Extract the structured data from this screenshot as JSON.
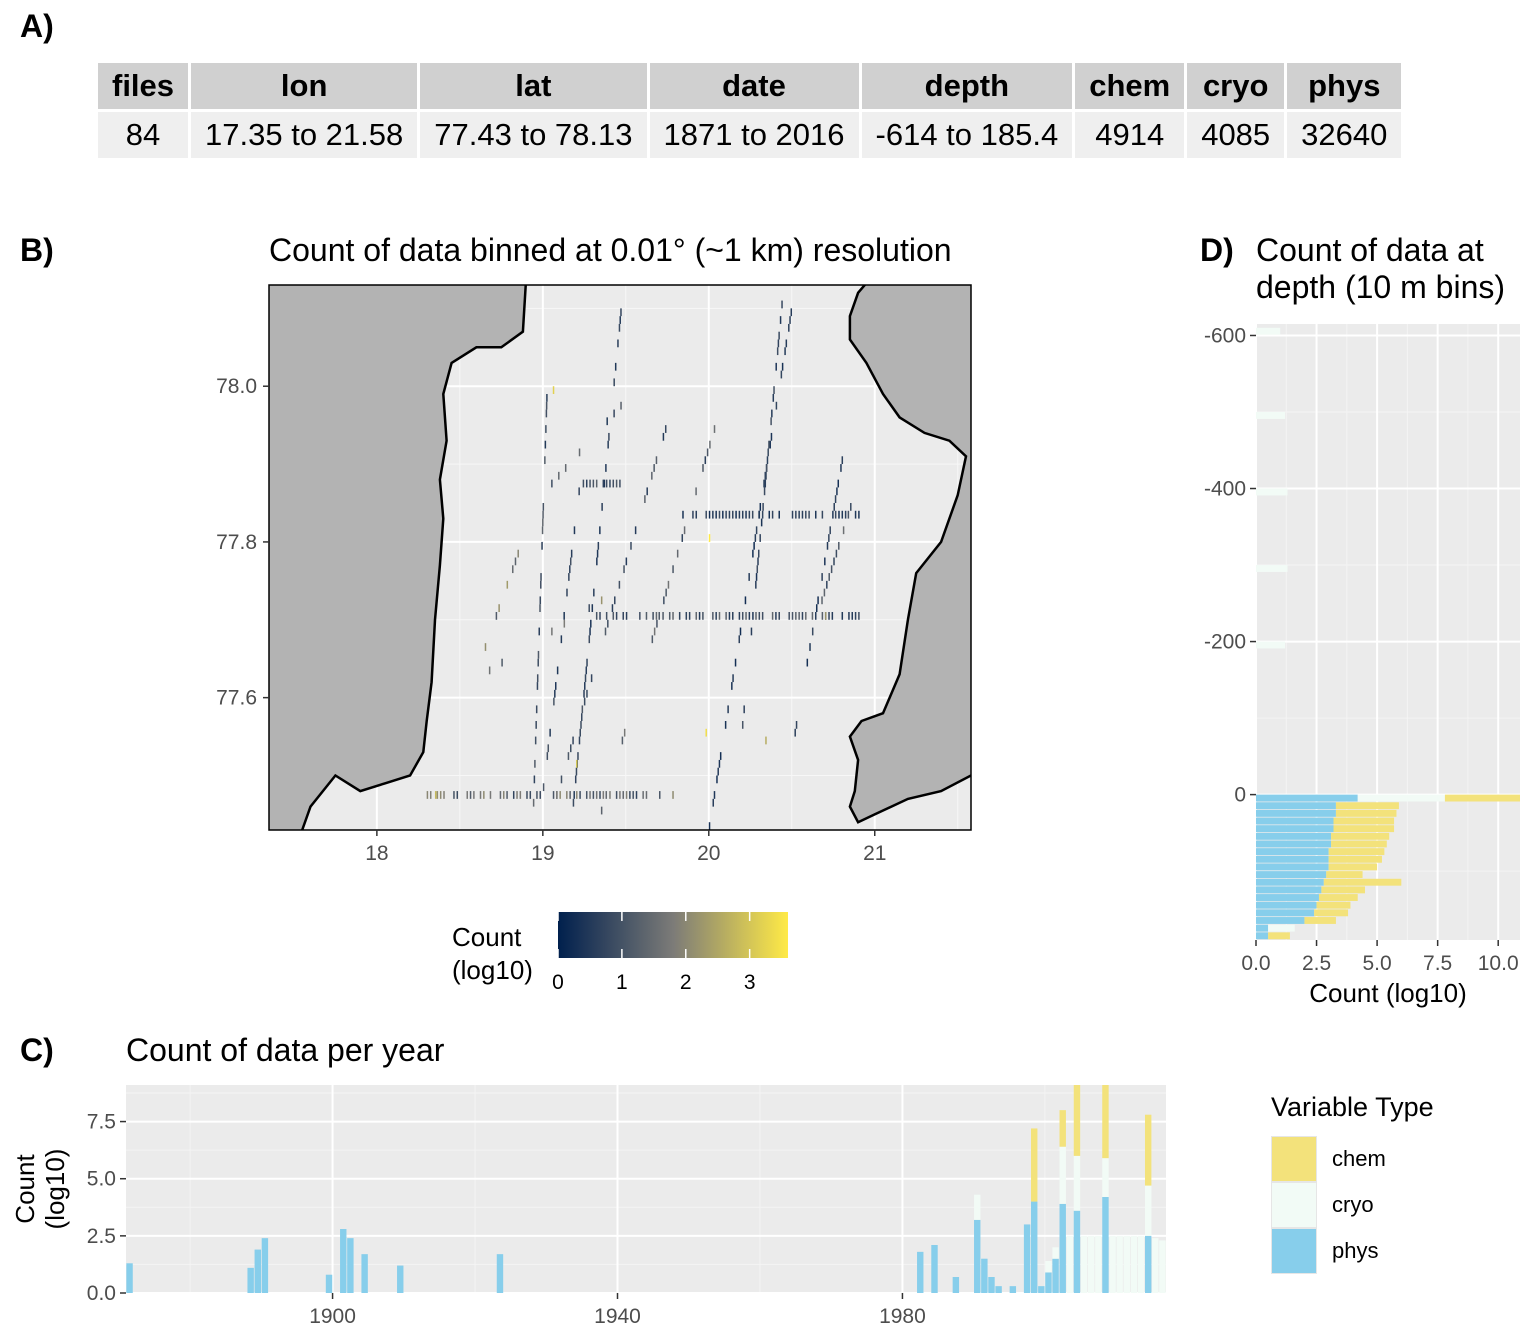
{
  "panels": {
    "a": "A)",
    "b": "B)",
    "c": "C)",
    "d": "D)"
  },
  "summary_table": {
    "headers": [
      "files",
      "lon",
      "lat",
      "date",
      "depth",
      "chem",
      "cryo",
      "phys"
    ],
    "row": [
      "84",
      "17.35 to 21.58",
      "77.43 to 78.13",
      "1871 to 2016",
      "-614 to 185.4",
      "4914",
      "4085",
      "32640"
    ]
  },
  "colors": {
    "chem": "#F3E27B",
    "cryo": "#F2FBF6",
    "phys": "#87CEEB",
    "land": "#b3b3b3",
    "panel_bg": "#ebebeb",
    "grid": "#ffffff",
    "count_low": "#00204D",
    "count_high": "#FFEA46"
  },
  "chart_data": [
    {
      "id": "map",
      "type": "heatmap",
      "title": "Count of data binned at 0.01° (~1 km) resolution",
      "xlabel": "",
      "ylabel": "",
      "xlim": [
        17.35,
        21.58
      ],
      "ylim": [
        77.43,
        78.13
      ],
      "x_ticks": [
        "18",
        "19",
        "20",
        "21"
      ],
      "y_ticks": [
        "77.6",
        "77.8",
        "78.0"
      ],
      "legend": {
        "title": "Count\n(log10)",
        "title_lines": [
          "Count",
          "(log10)"
        ],
        "ticks": [
          "0",
          "1",
          "2",
          "3"
        ],
        "range": [
          0,
          3.6
        ],
        "placement": "bottom"
      },
      "tracks": [
        {
          "lon": [
            18.65,
            18.88
          ],
          "lat": [
            77.66,
            77.8
          ],
          "value": 2.0
        },
        {
          "lon": [
            18.94,
            19.02
          ],
          "lat": [
            77.46,
            77.98
          ],
          "value": 1.0
        },
        {
          "lon": [
            19.0,
            19.22
          ],
          "lat": [
            77.48,
            77.87
          ],
          "value": 0.8
        },
        {
          "lon": [
            19.18,
            19.48
          ],
          "lat": [
            77.46,
            78.12
          ],
          "value": 0.6
        },
        {
          "lon": [
            18.6,
            19.35
          ],
          "lat": [
            77.62,
            77.72
          ],
          "value": 1.5
        },
        {
          "lon": [
            19.08,
            19.75
          ],
          "lat": [
            77.47,
            77.95
          ],
          "value": 0.9
        },
        {
          "lon": [
            19.35,
            20.03
          ],
          "lat": [
            77.45,
            77.94
          ],
          "value": 1.2
        },
        {
          "lon": [
            20.0,
            20.5
          ],
          "lat": [
            77.43,
            78.1
          ],
          "value": 0.5
        },
        {
          "lon": [
            20.2,
            20.45
          ],
          "lat": [
            77.56,
            78.13
          ],
          "value": 0.7
        },
        {
          "lon": [
            20.5,
            20.8
          ],
          "lat": [
            77.53,
            77.9
          ],
          "value": 0.6
        },
        {
          "lon": [
            20.62,
            20.88
          ],
          "lat": [
            77.68,
            77.86
          ],
          "value": 1.1
        },
        {
          "lon": [
            19.05,
            19.55
          ],
          "lat": [
            77.87,
            77.99
          ],
          "value": 1.0
        }
      ],
      "rows": [
        {
          "lat": 77.7,
          "lon": [
            19.3,
            20.9
          ],
          "value": 1.0
        },
        {
          "lat": 77.47,
          "lon": [
            18.3,
            19.8
          ],
          "value": 1.4
        },
        {
          "lat": 77.87,
          "lon": [
            19.1,
            19.5
          ],
          "value": 0.9
        },
        {
          "lat": 77.83,
          "lon": [
            19.8,
            20.9
          ],
          "value": 0.6
        }
      ],
      "hotspots": [
        {
          "lon": 19.06,
          "lat": 77.99,
          "value": 3.2
        },
        {
          "lon": 19.2,
          "lat": 77.51,
          "value": 3.0
        },
        {
          "lon": 19.98,
          "lat": 77.55,
          "value": 3.4
        },
        {
          "lon": 20.34,
          "lat": 77.54,
          "value": 2.6
        },
        {
          "lon": 20.0,
          "lat": 77.8,
          "value": 3.6
        },
        {
          "lon": 20.7,
          "lat": 77.7,
          "value": 2.2
        },
        {
          "lon": 18.35,
          "lat": 77.47,
          "value": 2.8
        }
      ]
    },
    {
      "id": "depth",
      "type": "bar",
      "orientation": "horizontal",
      "stacked": true,
      "title": "Count of data at depth (10 m bins)",
      "title_lines": [
        "Count of data at",
        "depth (10 m bins)"
      ],
      "xlabel": "Count (log10)",
      "ylabel": "",
      "xlim": [
        0,
        10.9
      ],
      "ylim": [
        -615,
        190
      ],
      "y_reversed": true,
      "x_ticks": [
        "0.0",
        "2.5",
        "5.0",
        "7.5",
        "10.0"
      ],
      "y_ticks": [
        "-600",
        "-400",
        "-200",
        "0"
      ],
      "bins": [
        -610,
        -500,
        -400,
        -300,
        -200,
        0,
        10,
        20,
        30,
        40,
        50,
        60,
        70,
        80,
        90,
        100,
        110,
        120,
        130,
        140,
        150,
        160,
        170,
        180
      ],
      "series": [
        {
          "name": "phys",
          "values": [
            0,
            0,
            0,
            0,
            0,
            4.2,
            3.3,
            3.3,
            3.2,
            3.2,
            3.1,
            3.1,
            3.0,
            3.0,
            3.0,
            2.9,
            2.8,
            2.7,
            2.6,
            2.5,
            2.4,
            2.0,
            0.5,
            0.5
          ]
        },
        {
          "name": "cryo",
          "values": [
            1.0,
            1.2,
            1.3,
            1.3,
            1.2,
            3.6,
            0,
            0,
            0,
            0,
            0,
            0,
            0,
            0,
            0,
            0,
            0,
            0,
            0,
            0,
            0,
            0,
            1.1,
            0
          ]
        },
        {
          "name": "chem",
          "values": [
            0,
            0,
            0,
            0,
            0,
            3.1,
            2.6,
            2.5,
            2.5,
            2.5,
            2.4,
            2.3,
            2.3,
            2.2,
            2.0,
            1.5,
            3.2,
            1.8,
            1.6,
            1.4,
            1.4,
            1.3,
            0,
            0.9
          ]
        }
      ]
    },
    {
      "id": "year",
      "type": "bar",
      "stacked": true,
      "title": "Count of data per year",
      "xlabel": "",
      "ylabel": "Count\n(log10)",
      "ylabel_lines": [
        "Count",
        "(log10)"
      ],
      "xlim": [
        1871,
        2017
      ],
      "ylim": [
        0,
        9.1
      ],
      "x_ticks": [
        "1900",
        "1940",
        "1980"
      ],
      "y_ticks": [
        "0.0",
        "2.5",
        "5.0",
        "7.5"
      ],
      "years": [
        1871,
        1888,
        1889,
        1890,
        1899,
        1901,
        1902,
        1904,
        1909,
        1923,
        1982,
        1984,
        1987,
        1990,
        1991,
        1992,
        1993,
        1995,
        1997,
        1998,
        1999,
        2000,
        2001,
        2002,
        2003,
        2004,
        2005,
        2006,
        2007,
        2008,
        2009,
        2010,
        2011,
        2012,
        2013,
        2014,
        2015,
        2016
      ],
      "series": [
        {
          "name": "phys",
          "values": [
            1.3,
            1.1,
            1.9,
            2.4,
            0.8,
            2.8,
            2.4,
            1.7,
            1.2,
            1.7,
            1.8,
            2.1,
            0.7,
            3.2,
            1.5,
            0.7,
            0.3,
            0.3,
            3.0,
            4.0,
            0.3,
            0.9,
            1.5,
            3.9,
            0,
            3.6,
            0,
            0,
            0,
            4.2,
            0,
            0,
            0,
            0,
            0,
            2.5,
            0,
            0
          ]
        },
        {
          "name": "cryo",
          "values": [
            0,
            0,
            0,
            0,
            0,
            0,
            0,
            0,
            0,
            0,
            0,
            0,
            0,
            1.1,
            0,
            0,
            0,
            0,
            0,
            0,
            0,
            0.5,
            0.5,
            2.5,
            2.5,
            2.4,
            2.5,
            2.5,
            2.5,
            1.7,
            2.5,
            2.5,
            2.5,
            2.5,
            2.5,
            2.2,
            2.4,
            2.3
          ]
        },
        {
          "name": "chem",
          "values": [
            0,
            0,
            0,
            0,
            0,
            0,
            0,
            0,
            0,
            0,
            0,
            0,
            0,
            0,
            0,
            0,
            0,
            0,
            0,
            3.2,
            0,
            0,
            0,
            1.6,
            0,
            3.4,
            0,
            0,
            0,
            3.2,
            0,
            0,
            0,
            0,
            0,
            3.1,
            0,
            0
          ]
        }
      ]
    }
  ],
  "fill_legend": {
    "title": "Variable Type",
    "items": [
      {
        "name": "chem",
        "color": "#F3E27B"
      },
      {
        "name": "cryo",
        "color": "#F2FBF6"
      },
      {
        "name": "phys",
        "color": "#87CEEB"
      }
    ]
  }
}
